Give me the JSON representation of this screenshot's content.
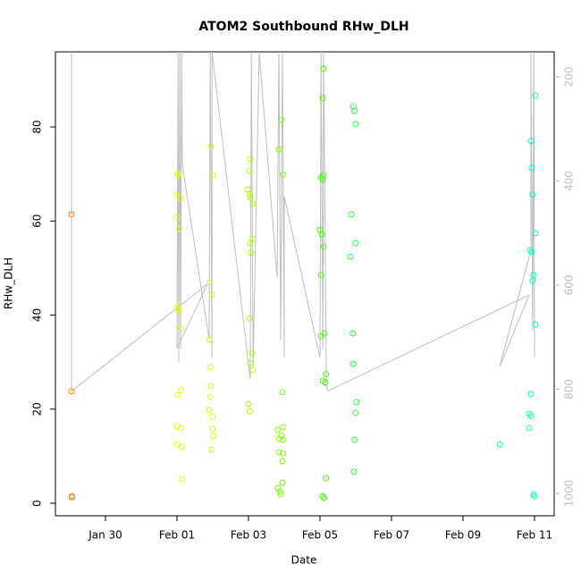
{
  "chart_data": {
    "type": "scatter",
    "title": "ATOM2 Southbound RHw_DLH",
    "xlabel": "Date",
    "ylabel": "RHw_DLH",
    "xlim": [
      28.6,
      42.55
    ],
    "ylim": [
      -2.66,
      95.96
    ],
    "y2lim": [
      1043,
      152
    ],
    "xticks": [
      {
        "value": 30,
        "label": "Jan 30"
      },
      {
        "value": 32,
        "label": "Feb 01"
      },
      {
        "value": 34,
        "label": "Feb 03"
      },
      {
        "value": 36,
        "label": "Feb 05"
      },
      {
        "value": 38,
        "label": "Feb 07"
      },
      {
        "value": 40,
        "label": "Feb 09"
      },
      {
        "value": 42,
        "label": "Feb 11"
      }
    ],
    "yticks": [
      0,
      20,
      40,
      60,
      80
    ],
    "y2ticks": [
      200,
      400,
      600,
      800,
      1000
    ],
    "y2_color": "#bebebe",
    "series": [
      {
        "color": "#ff8000",
        "x": [
          29.05,
          29.05,
          29.06,
          29.06
        ],
        "values": [
          61.4,
          23.8,
          1.5,
          1.3
        ]
      },
      {
        "color": "#e6ff00",
        "x": [
          32.02,
          32.03,
          32.0,
          32.1,
          32.0,
          32.06,
          32.03,
          32.0,
          32.05,
          32.1,
          32.12,
          32.02,
          32.0,
          32.12,
          32.0,
          32.14,
          32.15
        ],
        "values": [
          70.1,
          69.7,
          65.6,
          64.8,
          60.8,
          58.3,
          42.0,
          41.4,
          40.9,
          37.2,
          24.1,
          23.0,
          16.3,
          16.0,
          12.5,
          12.0,
          5.1
        ]
      },
      {
        "color": "#ccff00",
        "x": [
          32.95,
          33.0,
          32.92,
          32.97,
          32.9,
          32.93,
          32.95,
          32.93,
          32.9,
          33.0,
          33.0,
          33.02,
          32.97
        ],
        "values": [
          76.0,
          69.7,
          46.9,
          44.3,
          34.8,
          28.9,
          24.9,
          22.6,
          19.8,
          18.4,
          15.8,
          14.3,
          11.4
        ]
      },
      {
        "color": "#aaff00",
        "x": [
          34.05,
          34.03,
          33.98,
          34.03,
          34.05,
          34.12,
          34.12,
          34.05,
          34.07,
          34.03,
          34.1,
          34.05,
          34.12,
          34.0,
          34.03
        ],
        "values": [
          73.2,
          70.7,
          66.7,
          65.6,
          65.0,
          63.7,
          56.2,
          55.3,
          53.2,
          39.3,
          31.9,
          29.8,
          28.3,
          21.1,
          19.6
        ]
      },
      {
        "color": "#80ff00",
        "x": [
          34.92,
          34.85,
          34.97,
          34.95,
          34.97,
          34.82,
          34.92,
          34.85,
          34.97,
          34.85,
          34.97,
          34.95,
          34.95,
          34.83,
          34.88,
          34.9
        ],
        "values": [
          81.5,
          75.2,
          69.9,
          23.6,
          16.2,
          15.6,
          14.4,
          13.7,
          13.5,
          10.8,
          10.6,
          8.9,
          4.4,
          3.2,
          2.5,
          1.9
        ]
      },
      {
        "color": "#40ff00",
        "x": [
          36.1,
          36.08,
          36.1,
          36.03,
          36.08,
          36.0,
          36.05,
          36.1,
          36.03,
          36.12,
          36.03,
          36.17,
          36.08,
          36.15,
          36.17,
          36.07,
          36.12
        ],
        "values": [
          92.4,
          86.1,
          69.7,
          69.2,
          68.8,
          58.1,
          57.2,
          54.5,
          48.5,
          36.1,
          35.5,
          27.4,
          26.0,
          25.7,
          5.3,
          1.5,
          1.1
        ]
      },
      {
        "color": "#20ff40",
        "x": [
          36.93,
          36.97,
          37.0,
          36.88,
          37.0,
          36.85,
          36.92,
          36.93,
          37.02,
          37.0,
          36.97,
          36.95
        ],
        "values": [
          84.4,
          83.4,
          80.6,
          61.4,
          55.3,
          52.4,
          36.1,
          29.6,
          21.5,
          19.2,
          13.5,
          6.7
        ]
      },
      {
        "color": "#00ff80",
        "x": [
          41.03
        ],
        "values": [
          12.5
        ]
      },
      {
        "color": "#00ffc0",
        "x": [
          42.02,
          41.9,
          41.92,
          41.95,
          42.02,
          41.88,
          41.92,
          41.97,
          41.95,
          42.02,
          41.9,
          41.85,
          41.9,
          41.85,
          41.97,
          42.0
        ],
        "values": [
          86.7,
          77.0,
          71.3,
          65.6,
          57.4,
          53.8,
          53.4,
          48.5,
          47.3,
          38.0,
          23.2,
          19.0,
          18.6,
          16.0,
          1.9,
          1.5
        ]
      },
      {
        "type": "line",
        "axis": "y2",
        "color": "#bebebe",
        "x": [
          29.05,
          29.05,
          32.85,
          32.0,
          32.03,
          32.05,
          32.08,
          32.1,
          32.13,
          32.15,
          32.9,
          32.93,
          32.98,
          32.98,
          34.05,
          34.08,
          34.13,
          34.3,
          34.8,
          34.85,
          34.9,
          34.95,
          35.0,
          35.0,
          36.0,
          36.03,
          36.08,
          36.1,
          36.18,
          36.23,
          41.85,
          41.03,
          41.9,
          41.9,
          41.95,
          41.98,
          42.0
        ],
        "values": [
          152,
          804,
          598,
          722,
          152,
          748,
          152,
          722,
          152,
          370,
          705,
          152,
          739,
          152,
          782,
          152,
          756,
          152,
          585,
          152,
          705,
          152,
          739,
          430,
          739,
          152,
          722,
          152,
          799,
          803,
          619,
          756,
          533,
          152,
          688,
          152,
          739
        ]
      }
    ]
  }
}
